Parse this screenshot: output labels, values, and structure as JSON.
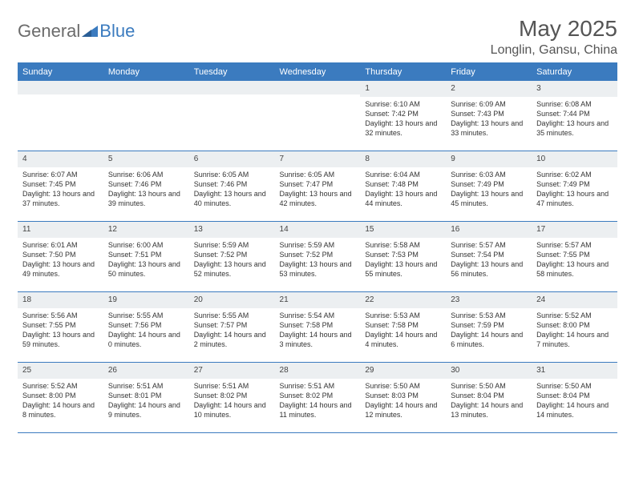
{
  "logo": {
    "part1": "General",
    "part2": "Blue"
  },
  "title": "May 2025",
  "location": "Longlin, Gansu, China",
  "colors": {
    "header_bg": "#3b7bbf",
    "header_text": "#ffffff",
    "daynum_bg": "#eceff1",
    "border": "#3b7bbf",
    "body_text": "#333333",
    "title_text": "#555555"
  },
  "weekdays": [
    "Sunday",
    "Monday",
    "Tuesday",
    "Wednesday",
    "Thursday",
    "Friday",
    "Saturday"
  ],
  "weeks": [
    [
      null,
      null,
      null,
      null,
      {
        "n": "1",
        "sr": "6:10 AM",
        "ss": "7:42 PM",
        "dl": "13 hours and 32 minutes."
      },
      {
        "n": "2",
        "sr": "6:09 AM",
        "ss": "7:43 PM",
        "dl": "13 hours and 33 minutes."
      },
      {
        "n": "3",
        "sr": "6:08 AM",
        "ss": "7:44 PM",
        "dl": "13 hours and 35 minutes."
      }
    ],
    [
      {
        "n": "4",
        "sr": "6:07 AM",
        "ss": "7:45 PM",
        "dl": "13 hours and 37 minutes."
      },
      {
        "n": "5",
        "sr": "6:06 AM",
        "ss": "7:46 PM",
        "dl": "13 hours and 39 minutes."
      },
      {
        "n": "6",
        "sr": "6:05 AM",
        "ss": "7:46 PM",
        "dl": "13 hours and 40 minutes."
      },
      {
        "n": "7",
        "sr": "6:05 AM",
        "ss": "7:47 PM",
        "dl": "13 hours and 42 minutes."
      },
      {
        "n": "8",
        "sr": "6:04 AM",
        "ss": "7:48 PM",
        "dl": "13 hours and 44 minutes."
      },
      {
        "n": "9",
        "sr": "6:03 AM",
        "ss": "7:49 PM",
        "dl": "13 hours and 45 minutes."
      },
      {
        "n": "10",
        "sr": "6:02 AM",
        "ss": "7:49 PM",
        "dl": "13 hours and 47 minutes."
      }
    ],
    [
      {
        "n": "11",
        "sr": "6:01 AM",
        "ss": "7:50 PM",
        "dl": "13 hours and 49 minutes."
      },
      {
        "n": "12",
        "sr": "6:00 AM",
        "ss": "7:51 PM",
        "dl": "13 hours and 50 minutes."
      },
      {
        "n": "13",
        "sr": "5:59 AM",
        "ss": "7:52 PM",
        "dl": "13 hours and 52 minutes."
      },
      {
        "n": "14",
        "sr": "5:59 AM",
        "ss": "7:52 PM",
        "dl": "13 hours and 53 minutes."
      },
      {
        "n": "15",
        "sr": "5:58 AM",
        "ss": "7:53 PM",
        "dl": "13 hours and 55 minutes."
      },
      {
        "n": "16",
        "sr": "5:57 AM",
        "ss": "7:54 PM",
        "dl": "13 hours and 56 minutes."
      },
      {
        "n": "17",
        "sr": "5:57 AM",
        "ss": "7:55 PM",
        "dl": "13 hours and 58 minutes."
      }
    ],
    [
      {
        "n": "18",
        "sr": "5:56 AM",
        "ss": "7:55 PM",
        "dl": "13 hours and 59 minutes."
      },
      {
        "n": "19",
        "sr": "5:55 AM",
        "ss": "7:56 PM",
        "dl": "14 hours and 0 minutes."
      },
      {
        "n": "20",
        "sr": "5:55 AM",
        "ss": "7:57 PM",
        "dl": "14 hours and 2 minutes."
      },
      {
        "n": "21",
        "sr": "5:54 AM",
        "ss": "7:58 PM",
        "dl": "14 hours and 3 minutes."
      },
      {
        "n": "22",
        "sr": "5:53 AM",
        "ss": "7:58 PM",
        "dl": "14 hours and 4 minutes."
      },
      {
        "n": "23",
        "sr": "5:53 AM",
        "ss": "7:59 PM",
        "dl": "14 hours and 6 minutes."
      },
      {
        "n": "24",
        "sr": "5:52 AM",
        "ss": "8:00 PM",
        "dl": "14 hours and 7 minutes."
      }
    ],
    [
      {
        "n": "25",
        "sr": "5:52 AM",
        "ss": "8:00 PM",
        "dl": "14 hours and 8 minutes."
      },
      {
        "n": "26",
        "sr": "5:51 AM",
        "ss": "8:01 PM",
        "dl": "14 hours and 9 minutes."
      },
      {
        "n": "27",
        "sr": "5:51 AM",
        "ss": "8:02 PM",
        "dl": "14 hours and 10 minutes."
      },
      {
        "n": "28",
        "sr": "5:51 AM",
        "ss": "8:02 PM",
        "dl": "14 hours and 11 minutes."
      },
      {
        "n": "29",
        "sr": "5:50 AM",
        "ss": "8:03 PM",
        "dl": "14 hours and 12 minutes."
      },
      {
        "n": "30",
        "sr": "5:50 AM",
        "ss": "8:04 PM",
        "dl": "14 hours and 13 minutes."
      },
      {
        "n": "31",
        "sr": "5:50 AM",
        "ss": "8:04 PM",
        "dl": "14 hours and 14 minutes."
      }
    ]
  ],
  "labels": {
    "sunrise": "Sunrise:",
    "sunset": "Sunset:",
    "daylight": "Daylight:"
  }
}
